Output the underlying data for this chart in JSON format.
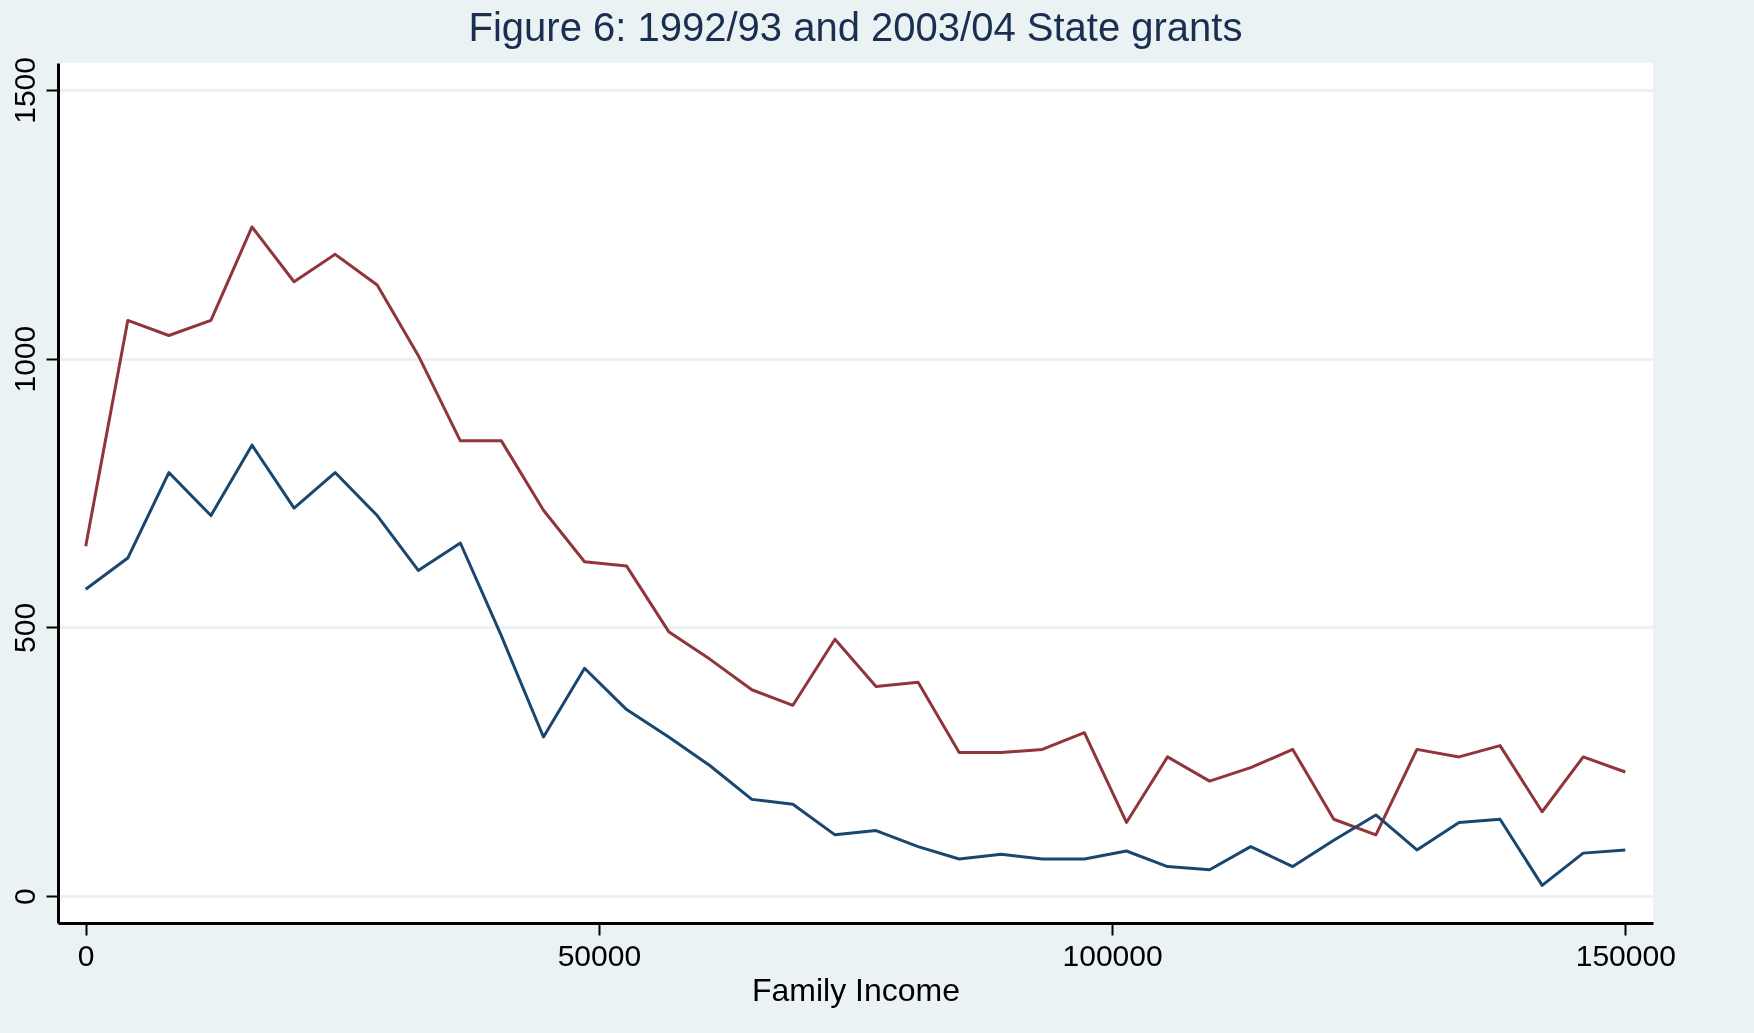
{
  "chart_data": {
    "type": "line",
    "title": "Figure 6: 1992/93 and 2003/04 State grants",
    "xlabel": "Family Income",
    "x": [
      0,
      4100,
      8100,
      12200,
      16200,
      20300,
      24300,
      28400,
      32400,
      36500,
      40500,
      44600,
      48600,
      52700,
      56800,
      60800,
      64900,
      68900,
      73000,
      77000,
      81100,
      85100,
      89200,
      93200,
      97300,
      101400,
      105400,
      109500,
      113500,
      117600,
      121600,
      125700,
      129700,
      133800,
      137800,
      141900,
      145900,
      150000
    ],
    "series": [
      {
        "color": "#90353b",
        "values": [
          651,
          1071,
          1043,
          1071,
          1245,
          1143,
          1194,
          1137,
          1006,
          847,
          847,
          718,
          622,
          614,
          492,
          441,
          384,
          355,
          478,
          390,
          398,
          267,
          267,
          273,
          304,
          137,
          259,
          214,
          239,
          273,
          143,
          114,
          273,
          259,
          280,
          157,
          259,
          231
        ]
      },
      {
        "color": "#1a476f",
        "values": [
          571,
          629,
          788,
          708,
          839,
          722,
          788,
          708,
          606,
          657,
          484,
          296,
          424,
          347,
          296,
          243,
          180,
          171,
          114,
          122,
          92,
          69,
          78,
          69,
          69,
          84,
          55,
          49,
          92,
          55,
          104,
          151,
          86,
          137,
          143,
          20,
          80,
          86
        ]
      }
    ],
    "xlim": [
      -2700,
      152700
    ],
    "xticks": [
      0,
      50000,
      100000,
      150000
    ],
    "ylim": [
      -50,
      1550
    ],
    "yticks": [
      0,
      500,
      1000,
      1500
    ],
    "grid": "y",
    "line_style": "solid",
    "marker": "none"
  }
}
